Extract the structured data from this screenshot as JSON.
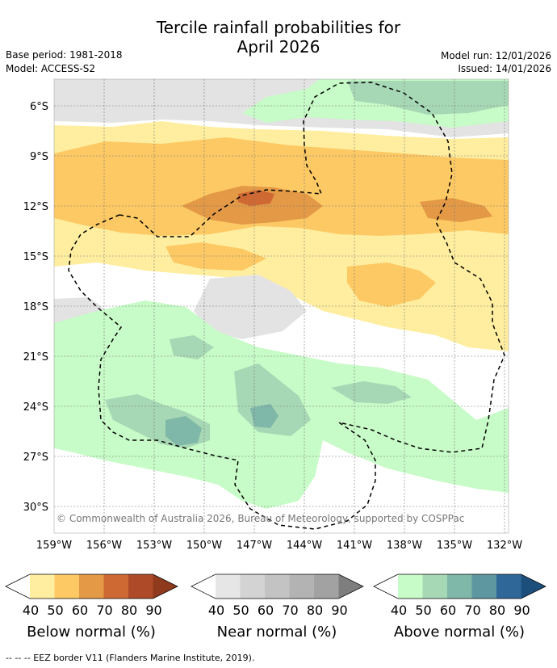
{
  "title": {
    "line1": "Tercile rainfall probabilities for",
    "line2": "April 2026"
  },
  "meta": {
    "base_period": "Base period: 1981-2018",
    "model": "Model: ACCESS-S2",
    "model_run": "Model run: 12/01/2026",
    "issued": "Issued: 14/01/2026"
  },
  "map": {
    "credit": "© Commonwealth of Australia 2026, Bureau of Meteorology, supported by COSPPac",
    "lat_labels": [
      "6°S",
      "9°S",
      "12°S",
      "15°S",
      "18°S",
      "21°S",
      "24°S",
      "27°S",
      "30°S"
    ],
    "lon_labels": [
      "159°W",
      "156°W",
      "153°W",
      "150°W",
      "147°W",
      "144°W",
      "141°W",
      "138°W",
      "135°W",
      "132°W"
    ]
  },
  "colorbars": [
    {
      "id": "below",
      "title": "Below normal (%)",
      "ticks": [
        "40",
        "50",
        "60",
        "70",
        "80",
        "90"
      ],
      "colors": [
        "#ffffff",
        "#ffeea0",
        "#fdc964",
        "#e39945",
        "#cf6933",
        "#ae4a27",
        "#8f3a1d"
      ]
    },
    {
      "id": "near",
      "title": "Near normal (%)",
      "ticks": [
        "40",
        "50",
        "60",
        "70",
        "80",
        "90"
      ],
      "colors": [
        "#ffffff",
        "#e6e6e6",
        "#d3d3d3",
        "#c3c3c3",
        "#b3b3b3",
        "#a2a2a2",
        "#7e7e7e"
      ]
    },
    {
      "id": "above",
      "title": "Above normal (%)",
      "ticks": [
        "40",
        "50",
        "60",
        "70",
        "80",
        "90"
      ],
      "colors": [
        "#ffffff",
        "#c7fbc7",
        "#a7d8b5",
        "#7fb7a8",
        "#5f97a0",
        "#2f6799",
        "#1d4f7d"
      ]
    }
  ],
  "footer": "--  --  -- EEZ border V11 (Flanders Marine Institute, 2019)."
}
